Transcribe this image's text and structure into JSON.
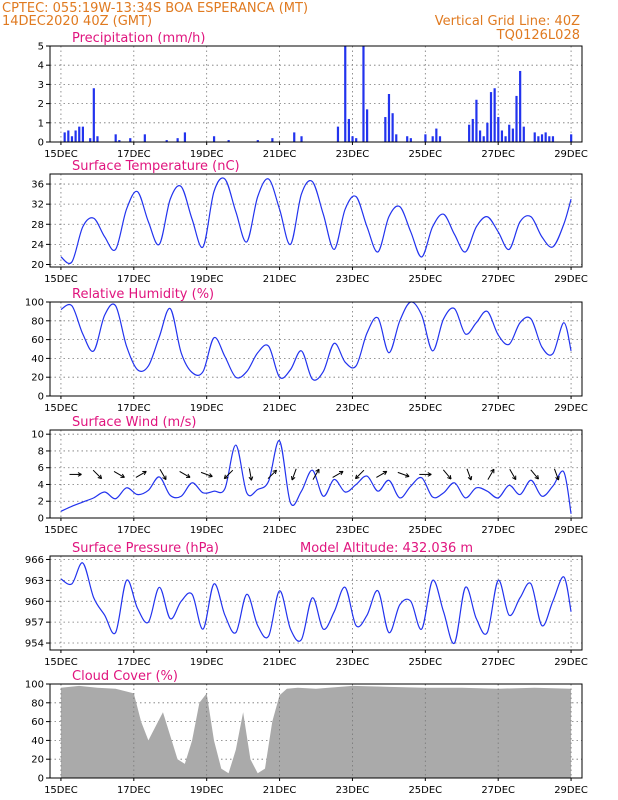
{
  "header": {
    "left_line1": "CPTEC:   055:19W-13:34S   BOA ESPERANCA (MT)",
    "left_line2": "14DEC2020 40Z (GMT)",
    "right_line1": "Vertical Grid Line: 40Z",
    "right_line2": "TQ0126L028"
  },
  "colors": {
    "header": "#e07a20",
    "panel_title": "#e0147e",
    "series": "#2233ee",
    "cloud": "#aaaaaa"
  },
  "x_tick_labels": [
    "15DEC",
    "17DEC",
    "19DEC",
    "21DEC",
    "23DEC",
    "25DEC",
    "27DEC",
    "29DEC"
  ],
  "chart_data": [
    {
      "type": "bar",
      "title": "Precipitation  (mm/h)",
      "yticks": [
        "0",
        "1",
        "2",
        "3",
        "4",
        "5"
      ],
      "ylim": [
        0,
        5
      ],
      "x_days": [
        0.1,
        0.2,
        0.3,
        0.4,
        0.5,
        0.6,
        0.8,
        0.9,
        1.0,
        1.5,
        1.6,
        1.9,
        2.3,
        2.9,
        3.2,
        3.4,
        4.2,
        4.6,
        5.4,
        5.8,
        6.4,
        6.6,
        7.6,
        7.8,
        7.9,
        8.0,
        8.1,
        8.3,
        8.4,
        8.9,
        9.0,
        9.1,
        9.2,
        9.5,
        9.6,
        10.0,
        10.2,
        10.3,
        10.4,
        11.2,
        11.3,
        11.4,
        11.5,
        11.6,
        11.7,
        11.8,
        11.9,
        12.0,
        12.1,
        12.2,
        12.3,
        12.4,
        12.5,
        12.6,
        12.7,
        13.0,
        13.1,
        13.2,
        13.3,
        13.4,
        13.5,
        14.0
      ],
      "values": [
        0.5,
        0.6,
        0.3,
        0.6,
        0.8,
        0.8,
        0.2,
        2.8,
        0.3,
        0.4,
        0.1,
        0.2,
        0.4,
        0.1,
        0.2,
        0.5,
        0.3,
        0.1,
        0.1,
        0.2,
        0.5,
        0.3,
        0.8,
        5.0,
        1.2,
        0.3,
        0.2,
        5.0,
        1.7,
        1.3,
        2.5,
        1.5,
        0.4,
        0.3,
        0.2,
        0.4,
        0.3,
        0.7,
        0.3,
        0.9,
        1.2,
        2.2,
        0.6,
        0.3,
        1.0,
        2.6,
        2.8,
        1.3,
        0.6,
        0.3,
        0.9,
        0.7,
        2.4,
        3.7,
        0.8,
        0.5,
        0.3,
        0.4,
        0.5,
        0.3,
        0.3,
        0.4
      ]
    },
    {
      "type": "line",
      "title": "Surface Temperature (nC)",
      "yticks": [
        "20",
        "24",
        "28",
        "32",
        "36"
      ],
      "ylim": [
        19.5,
        38
      ],
      "x_days": [
        0,
        0.3,
        0.6,
        0.9,
        1.2,
        1.5,
        1.8,
        2.1,
        2.4,
        2.7,
        3.0,
        3.3,
        3.6,
        3.9,
        4.2,
        4.5,
        4.8,
        5.1,
        5.4,
        5.7,
        6.0,
        6.3,
        6.6,
        6.9,
        7.2,
        7.5,
        7.8,
        8.1,
        8.4,
        8.7,
        9.0,
        9.3,
        9.6,
        9.9,
        10.2,
        10.5,
        10.8,
        11.1,
        11.4,
        11.7,
        12.0,
        12.3,
        12.6,
        12.9,
        13.2,
        13.5,
        13.8,
        14.0
      ],
      "values": [
        21.5,
        20.5,
        27.5,
        29.2,
        25.5,
        23.0,
        31.0,
        34.5,
        28.5,
        24.0,
        33.0,
        35.5,
        29.0,
        23.5,
        34.5,
        37.0,
        30.5,
        24.5,
        33.5,
        37.0,
        31.0,
        24.0,
        34.0,
        36.5,
        30.0,
        23.0,
        31.0,
        33.5,
        27.5,
        22.5,
        29.5,
        31.5,
        26.5,
        21.5,
        27.5,
        30.0,
        26.0,
        22.5,
        27.5,
        29.5,
        26.5,
        23.0,
        28.5,
        29.5,
        25.5,
        23.5,
        28.0,
        33.0
      ]
    },
    {
      "type": "line",
      "title": "Relative Humidity  (%)",
      "yticks": [
        "0",
        "20",
        "40",
        "60",
        "80",
        "100"
      ],
      "ylim": [
        0,
        100
      ],
      "x_days": [
        0,
        0.3,
        0.6,
        0.9,
        1.2,
        1.5,
        1.8,
        2.1,
        2.4,
        2.7,
        3.0,
        3.3,
        3.6,
        3.9,
        4.2,
        4.5,
        4.8,
        5.1,
        5.4,
        5.7,
        6.0,
        6.3,
        6.6,
        6.9,
        7.2,
        7.5,
        7.8,
        8.1,
        8.4,
        8.7,
        9.0,
        9.3,
        9.6,
        9.9,
        10.2,
        10.5,
        10.8,
        11.1,
        11.4,
        11.7,
        12.0,
        12.3,
        12.6,
        12.9,
        13.2,
        13.5,
        13.8,
        14.0
      ],
      "values": [
        92,
        96,
        66,
        48,
        86,
        96,
        53,
        28,
        32,
        63,
        93,
        46,
        25,
        26,
        62,
        42,
        20,
        26,
        46,
        53,
        20,
        28,
        48,
        18,
        26,
        56,
        36,
        32,
        67,
        83,
        46,
        80,
        100,
        86,
        48,
        82,
        93,
        66,
        78,
        90,
        65,
        55,
        78,
        82,
        52,
        45,
        78,
        48
      ]
    },
    {
      "type": "line",
      "title": "Surface Wind  (m/s)",
      "yticks": [
        "0",
        "2",
        "4",
        "6",
        "8",
        "10"
      ],
      "ylim": [
        0,
        10.5
      ],
      "x_days": [
        0,
        0.3,
        0.6,
        0.9,
        1.2,
        1.5,
        1.8,
        2.1,
        2.4,
        2.7,
        3.0,
        3.3,
        3.6,
        3.9,
        4.2,
        4.5,
        4.8,
        5.1,
        5.4,
        5.7,
        6.0,
        6.3,
        6.6,
        6.9,
        7.2,
        7.5,
        7.8,
        8.1,
        8.4,
        8.7,
        9.0,
        9.3,
        9.6,
        9.9,
        10.2,
        10.5,
        10.8,
        11.1,
        11.4,
        11.7,
        12.0,
        12.3,
        12.6,
        12.9,
        13.2,
        13.5,
        13.8,
        14.0
      ],
      "values": [
        0.8,
        1.4,
        1.9,
        2.4,
        3.1,
        2.3,
        3.6,
        2.8,
        3.3,
        4.9,
        2.7,
        2.6,
        4.2,
        3.0,
        3.2,
        3.5,
        8.7,
        3.0,
        3.4,
        4.4,
        9.2,
        1.8,
        3.2,
        5.7,
        2.6,
        4.6,
        3.1,
        4.0,
        5.0,
        3.2,
        4.5,
        2.4,
        3.8,
        4.8,
        2.5,
        3.0,
        4.2,
        2.4,
        3.6,
        3.2,
        2.4,
        3.9,
        2.8,
        4.5,
        2.6,
        3.8,
        5.5,
        0.5
      ],
      "arrow_x_days": [
        0.4,
        1.0,
        1.6,
        2.2,
        2.8,
        3.4,
        4.0,
        4.6,
        5.2,
        5.8,
        6.4,
        7.0,
        7.6,
        8.2,
        8.8,
        9.4,
        10.0,
        10.6,
        11.2,
        11.8,
        12.4,
        13.0,
        13.6
      ],
      "arrow_dir_deg": [
        90,
        135,
        120,
        60,
        150,
        120,
        110,
        225,
        170,
        45,
        200,
        30,
        60,
        225,
        60,
        110,
        90,
        140,
        160,
        30,
        150,
        140,
        160
      ]
    },
    {
      "type": "line",
      "title": "Surface Pressure  (hPa)",
      "subtitle": "Model Altitude:  432.036  m",
      "yticks": [
        "954",
        "957",
        "960",
        "963",
        "966"
      ],
      "ylim": [
        953,
        966.5
      ],
      "x_days": [
        0,
        0.3,
        0.6,
        0.9,
        1.2,
        1.5,
        1.8,
        2.1,
        2.4,
        2.7,
        3.0,
        3.3,
        3.6,
        3.9,
        4.2,
        4.5,
        4.8,
        5.1,
        5.4,
        5.7,
        6.0,
        6.3,
        6.6,
        6.9,
        7.2,
        7.5,
        7.8,
        8.1,
        8.4,
        8.7,
        9.0,
        9.3,
        9.6,
        9.9,
        10.2,
        10.5,
        10.8,
        11.1,
        11.4,
        11.7,
        12.0,
        12.3,
        12.6,
        12.9,
        13.2,
        13.5,
        13.8,
        14.0
      ],
      "values": [
        963.2,
        962.5,
        965.5,
        960.5,
        958.0,
        955.5,
        963.0,
        959.0,
        957.0,
        962.0,
        957.5,
        960.0,
        961.0,
        956.0,
        962.5,
        958.0,
        955.5,
        961.0,
        956.5,
        955.0,
        961.5,
        956.0,
        954.5,
        960.5,
        956.0,
        958.5,
        962.0,
        956.5,
        958.0,
        961.5,
        955.5,
        959.5,
        960.0,
        956.0,
        963.0,
        958.5,
        954.0,
        962.0,
        957.5,
        955.5,
        963.0,
        958.0,
        960.5,
        962.5,
        956.5,
        960.0,
        963.5,
        958.5
      ]
    },
    {
      "type": "area",
      "title": "Cloud Cover  (%)",
      "yticks": [
        "0",
        "20",
        "40",
        "60",
        "80",
        "100"
      ],
      "ylim": [
        0,
        100
      ],
      "x_days": [
        0,
        0.5,
        1.0,
        1.5,
        2.0,
        2.2,
        2.4,
        2.6,
        2.8,
        3.0,
        3.2,
        3.4,
        3.6,
        3.8,
        4.0,
        4.2,
        4.4,
        4.6,
        4.8,
        5.0,
        5.2,
        5.4,
        5.6,
        5.8,
        6.0,
        6.2,
        6.5,
        7.0,
        8.0,
        9.0,
        10.0,
        11.0,
        12.0,
        13.0,
        14.0
      ],
      "values": [
        96,
        98,
        96,
        95,
        90,
        60,
        40,
        55,
        70,
        45,
        20,
        15,
        40,
        80,
        90,
        40,
        10,
        5,
        30,
        70,
        20,
        5,
        10,
        60,
        88,
        95,
        96,
        95,
        98,
        97,
        96,
        96,
        95,
        96,
        95
      ]
    }
  ]
}
